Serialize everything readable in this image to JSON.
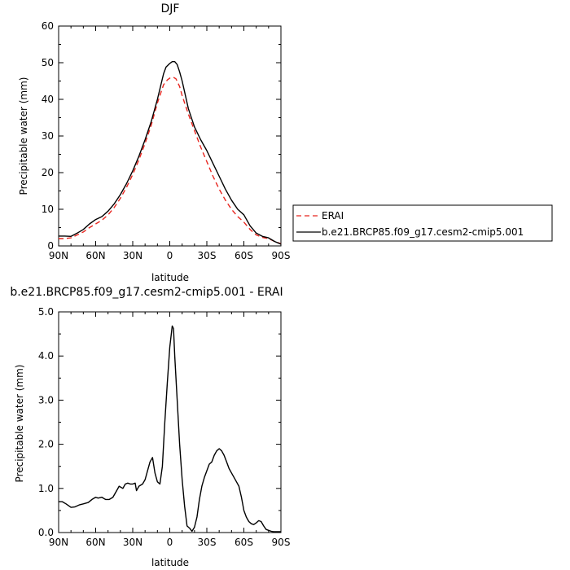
{
  "chart_data": [
    {
      "type": "line",
      "title": "DJF",
      "xlabel": "latitude",
      "ylabel": "Precipitable water (mm)",
      "xlim": [
        -90,
        90
      ],
      "ylim": [
        0,
        60
      ],
      "x_ticks": [
        -90,
        -60,
        -30,
        0,
        30,
        60,
        90
      ],
      "x_tick_labels": [
        "90N",
        "60N",
        "30N",
        "0",
        "30S",
        "60S",
        "90S"
      ],
      "y_ticks": [
        0,
        10,
        20,
        30,
        40,
        50,
        60
      ],
      "y_tick_labels": [
        "0",
        "10",
        "20",
        "30",
        "40",
        "50",
        "60"
      ],
      "legend_position": "right",
      "series": [
        {
          "name": "ERAI",
          "color": "#e8261f",
          "dash": true,
          "x": [
            -90,
            -85,
            -80,
            -75,
            -70,
            -65,
            -60,
            -55,
            -50,
            -45,
            -40,
            -35,
            -30,
            -25,
            -20,
            -15,
            -10,
            -5,
            -2,
            0,
            3,
            5,
            8,
            10,
            15,
            20,
            25,
            30,
            35,
            40,
            45,
            50,
            55,
            60,
            65,
            70,
            75,
            80,
            85,
            90
          ],
          "y": [
            2.0,
            2.0,
            2.2,
            3.0,
            3.8,
            5.0,
            6.0,
            7.0,
            8.5,
            10.5,
            13.0,
            16.0,
            19.5,
            23.5,
            28.0,
            33.0,
            39.0,
            44.0,
            45.3,
            45.8,
            46.0,
            45.6,
            43.5,
            41.0,
            36.0,
            31.5,
            27.0,
            23.0,
            19.0,
            15.5,
            12.5,
            10.0,
            8.0,
            6.5,
            4.5,
            3.0,
            2.3,
            2.0,
            1.2,
            0.6
          ]
        },
        {
          "name": "b.e21.BRCP85.f09_g17.cesm2-cmip5.001",
          "color": "#000000",
          "dash": false,
          "x": [
            -90,
            -85,
            -80,
            -75,
            -70,
            -65,
            -60,
            -55,
            -50,
            -45,
            -40,
            -35,
            -30,
            -25,
            -20,
            -15,
            -10,
            -5,
            -3,
            0,
            2,
            4,
            6,
            8,
            10,
            15,
            20,
            25,
            30,
            35,
            40,
            45,
            50,
            55,
            60,
            65,
            70,
            75,
            80,
            85,
            90
          ],
          "y": [
            2.7,
            2.7,
            2.6,
            3.5,
            4.5,
            6.0,
            7.2,
            8.0,
            9.5,
            11.5,
            14.0,
            17.0,
            20.5,
            24.5,
            29.0,
            34.0,
            40.0,
            47.0,
            48.8,
            49.8,
            50.3,
            50.3,
            49.5,
            47.5,
            45.0,
            37.5,
            32.5,
            29.0,
            26.0,
            22.5,
            19.0,
            15.5,
            12.5,
            10.0,
            8.5,
            5.5,
            3.5,
            2.6,
            2.2,
            1.2,
            0.5
          ]
        }
      ]
    },
    {
      "type": "line",
      "title": "b.e21.BRCP85.f09_g17.cesm2-cmip5.001  -  ERAI",
      "xlabel": "latitude",
      "ylabel": "Precipitable water (mm)",
      "xlim": [
        -90,
        90
      ],
      "ylim": [
        0,
        5
      ],
      "x_ticks": [
        -90,
        -60,
        -30,
        0,
        30,
        60,
        90
      ],
      "x_tick_labels": [
        "90N",
        "60N",
        "30N",
        "0",
        "30S",
        "60S",
        "90S"
      ],
      "y_ticks": [
        0,
        1,
        2,
        3,
        4,
        5
      ],
      "y_tick_labels": [
        "0.0",
        "1.0",
        "2.0",
        "3.0",
        "4.0",
        "5.0"
      ],
      "series": [
        {
          "color": "#000000",
          "dash": false,
          "x": [
            -90,
            -87,
            -84,
            -80,
            -77,
            -73,
            -70,
            -66,
            -63,
            -60,
            -58,
            -55,
            -52,
            -49,
            -46,
            -43,
            -41,
            -38,
            -36,
            -34,
            -32,
            -30,
            -28,
            -27,
            -25,
            -22,
            -20,
            -18,
            -16,
            -14,
            -12,
            -10,
            -8,
            -6,
            -4,
            -2,
            0,
            2,
            3,
            4,
            6,
            8,
            10,
            12,
            14,
            16,
            18,
            20,
            22,
            24,
            26,
            28,
            30,
            32,
            34,
            36,
            38,
            40,
            42,
            44,
            46,
            48,
            50,
            52,
            54,
            56,
            58,
            60,
            62,
            64,
            66,
            68,
            70,
            72,
            74,
            76,
            78,
            80,
            82,
            84,
            86,
            88,
            90
          ],
          "y": [
            0.7,
            0.7,
            0.65,
            0.57,
            0.58,
            0.63,
            0.65,
            0.68,
            0.75,
            0.8,
            0.78,
            0.8,
            0.75,
            0.75,
            0.8,
            0.95,
            1.05,
            1.0,
            1.1,
            1.12,
            1.1,
            1.1,
            1.12,
            0.95,
            1.05,
            1.1,
            1.2,
            1.4,
            1.6,
            1.7,
            1.35,
            1.15,
            1.1,
            1.5,
            2.5,
            3.4,
            4.2,
            4.68,
            4.62,
            4.0,
            3.0,
            2.0,
            1.2,
            0.6,
            0.15,
            0.1,
            0.03,
            0.12,
            0.35,
            0.75,
            1.05,
            1.25,
            1.4,
            1.55,
            1.6,
            1.75,
            1.85,
            1.9,
            1.85,
            1.75,
            1.6,
            1.45,
            1.35,
            1.25,
            1.15,
            1.05,
            0.8,
            0.5,
            0.35,
            0.25,
            0.2,
            0.18,
            0.22,
            0.27,
            0.25,
            0.15,
            0.07,
            0.05,
            0.03,
            0.02,
            0.02,
            0.02,
            0.02
          ]
        }
      ]
    }
  ]
}
